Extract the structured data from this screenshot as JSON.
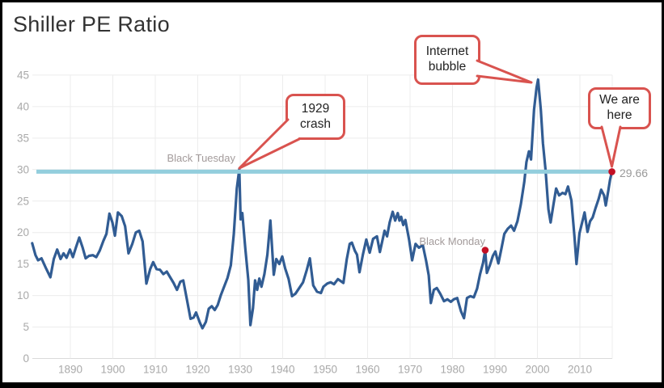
{
  "title": "Shiller PE Ratio",
  "colors": {
    "line": "#315c93",
    "hline": "#93cedd",
    "callout": "#d9534f",
    "dot": "#c30f24",
    "grid": "#ececec",
    "grid_zero": "#dadada",
    "axis_label": "#a9a9a9",
    "annotation_label": "#a39b9b",
    "value_label": "#999999",
    "title_text": "#333333",
    "callout_text": "#222222"
  },
  "chart_data": {
    "type": "line",
    "title": "Shiller PE Ratio",
    "xlabel": "",
    "ylabel": "",
    "grid": true,
    "legend": "none",
    "xlim": [
      1881,
      2017.8
    ],
    "ylim": [
      0,
      45
    ],
    "x_ticks": [
      1890,
      1900,
      1910,
      1920,
      1930,
      1940,
      1950,
      1960,
      1970,
      1980,
      1990,
      2000,
      2010
    ],
    "y_ticks": [
      0,
      5,
      10,
      15,
      20,
      25,
      30,
      35,
      40,
      45
    ],
    "reference_line": {
      "value": 29.66,
      "label": "29.66"
    },
    "markers": [
      {
        "label": "Black Tuesday",
        "x": 1929.8,
        "y": 30.1,
        "type": "text"
      },
      {
        "label": "Black Monday",
        "x": 1987.7,
        "y": 17.2,
        "type": "dot"
      },
      {
        "label": "We are here",
        "x": 2017.55,
        "y": 29.66,
        "type": "dot"
      }
    ],
    "callouts": [
      {
        "text": "1929\ncrash"
      },
      {
        "text": "Internet\nbubble"
      },
      {
        "text": "We are\nhere"
      }
    ],
    "series": [
      {
        "name": "Shiller PE",
        "points": [
          [
            1881,
            18.3
          ],
          [
            1881.8,
            16.4
          ],
          [
            1882.4,
            15.6
          ],
          [
            1883.2,
            15.9
          ],
          [
            1884.2,
            14.4
          ],
          [
            1885.3,
            12.9
          ],
          [
            1886.1,
            15.8
          ],
          [
            1886.9,
            17.3
          ],
          [
            1887.7,
            15.8
          ],
          [
            1888.4,
            16.7
          ],
          [
            1889.1,
            16.0
          ],
          [
            1889.9,
            17.3
          ],
          [
            1890.6,
            16.1
          ],
          [
            1891.3,
            17.6
          ],
          [
            1892.1,
            19.2
          ],
          [
            1892.9,
            17.6
          ],
          [
            1893.6,
            15.9
          ],
          [
            1894.4,
            16.3
          ],
          [
            1895.3,
            16.4
          ],
          [
            1896.1,
            16.1
          ],
          [
            1896.9,
            17.1
          ],
          [
            1897.8,
            18.7
          ],
          [
            1898.5,
            19.8
          ],
          [
            1899.2,
            23.0
          ],
          [
            1899.9,
            21.6
          ],
          [
            1900.5,
            19.5
          ],
          [
            1901.2,
            23.2
          ],
          [
            1902.1,
            22.6
          ],
          [
            1902.9,
            21.0
          ],
          [
            1903.7,
            16.7
          ],
          [
            1904.6,
            18.2
          ],
          [
            1905.4,
            20.0
          ],
          [
            1906.2,
            20.3
          ],
          [
            1907,
            18.6
          ],
          [
            1907.9,
            11.9
          ],
          [
            1908.8,
            14.2
          ],
          [
            1909.5,
            15.3
          ],
          [
            1910.3,
            14.2
          ],
          [
            1911.1,
            14.1
          ],
          [
            1911.9,
            13.4
          ],
          [
            1912.7,
            13.8
          ],
          [
            1913.5,
            12.9
          ],
          [
            1914.3,
            12.0
          ],
          [
            1915.1,
            10.9
          ],
          [
            1915.9,
            12.2
          ],
          [
            1916.6,
            12.4
          ],
          [
            1917.4,
            9.5
          ],
          [
            1918.3,
            6.3
          ],
          [
            1919,
            6.5
          ],
          [
            1919.6,
            7.3
          ],
          [
            1920.5,
            5.7
          ],
          [
            1921.1,
            4.8
          ],
          [
            1921.9,
            5.8
          ],
          [
            1922.6,
            7.9
          ],
          [
            1923.3,
            8.3
          ],
          [
            1924,
            7.7
          ],
          [
            1924.7,
            8.5
          ],
          [
            1925.4,
            10.0
          ],
          [
            1926.2,
            11.4
          ],
          [
            1927,
            12.8
          ],
          [
            1927.8,
            14.8
          ],
          [
            1928.5,
            19.8
          ],
          [
            1929.2,
            27.0
          ],
          [
            1929.8,
            30.1
          ],
          [
            1930.1,
            22.1
          ],
          [
            1930.5,
            23.1
          ],
          [
            1931.2,
            17.5
          ],
          [
            1931.9,
            12.5
          ],
          [
            1932.4,
            5.3
          ],
          [
            1933,
            8.0
          ],
          [
            1933.5,
            12.4
          ],
          [
            1934,
            10.9
          ],
          [
            1934.5,
            12.7
          ],
          [
            1935,
            11.4
          ],
          [
            1935.7,
            13.4
          ],
          [
            1936.4,
            16.5
          ],
          [
            1937.1,
            21.9
          ],
          [
            1937.9,
            13.3
          ],
          [
            1938.5,
            15.8
          ],
          [
            1939.2,
            15.0
          ],
          [
            1939.9,
            16.2
          ],
          [
            1940.6,
            14.3
          ],
          [
            1941.4,
            12.6
          ],
          [
            1942.2,
            9.9
          ],
          [
            1943,
            10.3
          ],
          [
            1943.9,
            11.2
          ],
          [
            1944.8,
            12.1
          ],
          [
            1945.7,
            14.1
          ],
          [
            1946.4,
            15.9
          ],
          [
            1947.2,
            11.6
          ],
          [
            1948.1,
            10.6
          ],
          [
            1949,
            10.4
          ],
          [
            1949.6,
            11.4
          ],
          [
            1950.5,
            11.9
          ],
          [
            1951.3,
            12.1
          ],
          [
            1952.1,
            11.8
          ],
          [
            1953,
            12.6
          ],
          [
            1954.3,
            12.0
          ],
          [
            1955.1,
            15.8
          ],
          [
            1955.8,
            18.2
          ],
          [
            1956.3,
            18.4
          ],
          [
            1957,
            17.1
          ],
          [
            1957.5,
            16.5
          ],
          [
            1958.1,
            13.7
          ],
          [
            1958.9,
            16.5
          ],
          [
            1959.7,
            18.9
          ],
          [
            1960.5,
            16.8
          ],
          [
            1961.3,
            19.0
          ],
          [
            1962.2,
            19.4
          ],
          [
            1962.9,
            16.9
          ],
          [
            1964,
            20.3
          ],
          [
            1964.6,
            19.4
          ],
          [
            1965.2,
            21.6
          ],
          [
            1965.9,
            23.3
          ],
          [
            1966.5,
            21.9
          ],
          [
            1967.1,
            23.1
          ],
          [
            1967.5,
            21.9
          ],
          [
            1967.9,
            22.5
          ],
          [
            1968.4,
            21.2
          ],
          [
            1968.9,
            22.0
          ],
          [
            1969.8,
            18.8
          ],
          [
            1970.5,
            15.6
          ],
          [
            1971.3,
            18.2
          ],
          [
            1972.1,
            17.6
          ],
          [
            1973,
            18.0
          ],
          [
            1973.8,
            15.5
          ],
          [
            1974.4,
            13.2
          ],
          [
            1974.9,
            8.8
          ],
          [
            1975.6,
            10.9
          ],
          [
            1976.3,
            11.2
          ],
          [
            1977.1,
            10.3
          ],
          [
            1978,
            9.1
          ],
          [
            1978.8,
            9.4
          ],
          [
            1979.6,
            9.0
          ],
          [
            1980.3,
            9.4
          ],
          [
            1981.1,
            9.6
          ],
          [
            1982,
            7.5
          ],
          [
            1982.7,
            6.4
          ],
          [
            1983.4,
            9.6
          ],
          [
            1984.2,
            9.9
          ],
          [
            1985,
            9.7
          ],
          [
            1985.8,
            11.1
          ],
          [
            1986.5,
            13.4
          ],
          [
            1987.2,
            15.2
          ],
          [
            1987.7,
            17.2
          ],
          [
            1988.1,
            13.6
          ],
          [
            1988.8,
            14.8
          ],
          [
            1989.5,
            16.3
          ],
          [
            1990.1,
            17.0
          ],
          [
            1990.8,
            15.1
          ],
          [
            1991.5,
            17.4
          ],
          [
            1992.2,
            19.8
          ],
          [
            1993,
            20.6
          ],
          [
            1993.8,
            21.1
          ],
          [
            1994.5,
            20.3
          ],
          [
            1995.3,
            21.8
          ],
          [
            1996.1,
            24.5
          ],
          [
            1996.9,
            28.0
          ],
          [
            1997.4,
            31.2
          ],
          [
            1998,
            32.9
          ],
          [
            1998.5,
            31.6
          ],
          [
            1999.2,
            39.5
          ],
          [
            1999.8,
            43.0
          ],
          [
            2000.15,
            44.3
          ],
          [
            2000.8,
            39.5
          ],
          [
            2001.3,
            34.2
          ],
          [
            2001.9,
            30.0
          ],
          [
            2002.6,
            23.7
          ],
          [
            2003.1,
            21.6
          ],
          [
            2003.8,
            24.5
          ],
          [
            2004.4,
            27.0
          ],
          [
            2005.1,
            25.9
          ],
          [
            2005.9,
            26.3
          ],
          [
            2006.6,
            26.1
          ],
          [
            2007.2,
            27.3
          ],
          [
            2008,
            25.1
          ],
          [
            2008.7,
            19.5
          ],
          [
            2009.2,
            15.0
          ],
          [
            2009.9,
            19.9
          ],
          [
            2010.5,
            21.5
          ],
          [
            2011.1,
            23.2
          ],
          [
            2011.8,
            20.1
          ],
          [
            2012.4,
            21.8
          ],
          [
            2013,
            22.4
          ],
          [
            2013.7,
            23.9
          ],
          [
            2014.4,
            25.3
          ],
          [
            2015,
            26.8
          ],
          [
            2015.7,
            25.9
          ],
          [
            2016.1,
            24.3
          ],
          [
            2016.7,
            26.7
          ],
          [
            2017.1,
            28.4
          ],
          [
            2017.55,
            29.66
          ]
        ]
      }
    ]
  }
}
